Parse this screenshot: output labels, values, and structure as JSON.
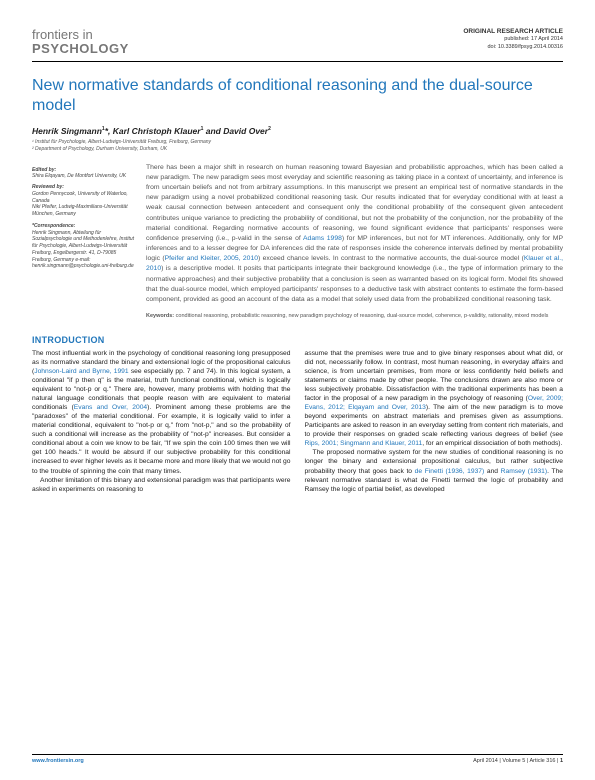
{
  "journal": {
    "line1": "frontiers in",
    "line2": "PSYCHOLOGY"
  },
  "header": {
    "article_type": "ORIGINAL RESEARCH ARTICLE",
    "pub_date": "published: 17 April 2014",
    "doi": "doi: 10.3389/fpsyg.2014.00316"
  },
  "title": "New normative standards of conditional reasoning and the dual-source model",
  "authors_html": "Henrik Singmann<sup>1</sup>*, Karl Christoph Klauer<sup>1</sup> and David Over<sup>2</sup>",
  "affiliations": [
    "¹ Institut für Psychologie, Albert-Ludwigs-Universität Freiburg, Freiburg, Germany",
    "² Department of Psychology, Durham University, Durham, UK"
  ],
  "sidebar": {
    "edited_label": "Edited by:",
    "edited_by": "Shira Elqayam, De Montfort University, UK",
    "reviewed_label": "Reviewed by:",
    "reviewers": [
      "Gordon Pennycook, University of Waterloo, Canada",
      "Niki Pfeifer, Ludwig-Maximilians-Universität München, Germany"
    ],
    "corr_label": "*Correspondence:",
    "corr_text": "Henrik Singmann, Abteilung für Sozialpsychologie und Methodenlehre, Institut für Psychologie, Albert-Ludwigs-Universität Freiburg, Engelbergerstr. 41, D-79085 Freiburg, Germany e-mail: henrik.singmann@psychologie.uni-freiburg.de"
  },
  "abstract": {
    "p1": "There has been a major shift in research on human reasoning toward Bayesian and probabilistic approaches, which has been called a new paradigm. The new paradigm sees most everyday and scientific reasoning as taking place in a context of uncertainty, and inference is from uncertain beliefs and not from arbitrary assumptions. In this manuscript we present an empirical test of normative standards in the new paradigm using a novel probabilized conditional reasoning task. Our results indicated that for everyday conditional with at least a weak causal connection between antecedent and consequent only the conditional probability of the consequent given antecedent contributes unique variance to predicting the probability of conditional, but not the probability of the conjunction, nor the probability of the material conditional. Regarding normative accounts of reasoning, we found significant evidence that participants' responses were confidence preserving (i.e., p-valid in the sense of ",
    "link1": "Adams 1998",
    "p2": ") for MP inferences, but not for MT inferences. Additionally, only for MP inferences and to a lesser degree for DA inferences did the rate of responses inside the coherence intervals defined by mental probability logic (",
    "link2": "Pfeifer and Kleiter, 2005, 2010",
    "p3": ") exceed chance levels. In contrast to the normative accounts, the dual-source model (",
    "link3": "Klauer et al., 2010",
    "p4": ") is a descriptive model. It posits that participants integrate their background knowledge (i.e., the type of information primary to the normative approaches) and their subjective probability that a conclusion is seen as warranted based on its logical form. Model fits showed that the dual-source model, which employed participants' responses to a deductive task with abstract contents to estimate the form-based component, provided as good an account of the data as a model that solely used data from the probabilized conditional reasoning task.",
    "kw_label": "Keywords:",
    "keywords": "conditional reasoning, probabilistic reasoning, new paradigm psychology of reasoning, dual-source model, coherence, p-validity, rationality, mixed models"
  },
  "intro_heading": "INTRODUCTION",
  "body": {
    "col1_p1a": "The most influential work in the psychology of conditional reasoning long presupposed as its normative standard the binary and extensional logic of the propositional calculus (",
    "col1_link1": "Johnson-Laird and Byrne, 1991",
    "col1_p1b": " see especially pp. 7 and 74). In this logical system, a conditional \"if p then q\" is the material, truth functional conditional, which is logically equivalent to \"not-p or q.\" There are, however, many problems with holding that the natural language conditionals that people reason with are equivalent to material conditionals (",
    "col1_link2": "Evans and Over, 2004",
    "col1_p1c": "). Prominent among these problems are the \"paradoxes\" of the material conditional. For example, it is logically valid to infer a material conditional, equivalent to \"not-p or q,\" from \"not-p,\" and so the probability of such a conditional will increase as the probability of \"not-p\" increases. But consider a conditional about a coin we know to be fair, \"If we spin the coin 100 times then we will get 100 heads.\" It would be absurd if our subjective probability for this conditional increased to ever higher levels as it became more and more likely that we would not go to the trouble of spinning the coin that many times.",
    "col1_p2": "Another limitation of this binary and extensional paradigm was that participants were asked in experiments on reasoning to",
    "col2_p1a": "assume that the premises were true and to give binary responses about what did, or did not, necessarily follow. In contrast, most human reasoning, in everyday affairs and science, is from uncertain premises, from more or less confidently held beliefs and statements or claims made by other people. The conclusions drawn are also more or less subjectively probable. Dissatisfaction with the traditional experiments has been a factor in the proposal of a new paradigm in the psychology of reasoning (",
    "col2_link1": "Over, 2009; Evans, 2012; Elqayam and Over, 2013",
    "col2_p1b": "). The aim of the new paradigm is to move beyond experiments on abstract materials and premises given as assumptions. Participants are asked to reason in an everyday setting from content rich materials, and to provide their responses on graded scale reflecting various degrees of belief (see ",
    "col2_link2": "Rips, 2001; Singmann and Klauer, 2011",
    "col2_p1c": ", for an empirical dissociation of both methods).",
    "col2_p2a": "The proposed normative system for the new studies of conditional reasoning is no longer the binary and extensional propositional calculus, but rather subjective probability theory that goes back to ",
    "col2_link3": "de Finetti (1936, 1937)",
    "col2_p2b": " and ",
    "col2_link4": "Ramsey (1931)",
    "col2_p2c": ". The relevant normative standard is what de Finetti termed the logic of probability and Ramsey the logic of partial belief, as developed"
  },
  "footer": {
    "url": "www.frontiersin.org",
    "right": "April 2014 | Volume 5 | Article 316 | ",
    "page": "1"
  },
  "colors": {
    "accent": "#2277bb",
    "text": "#222222",
    "muted": "#555555",
    "logo": "#777777"
  }
}
